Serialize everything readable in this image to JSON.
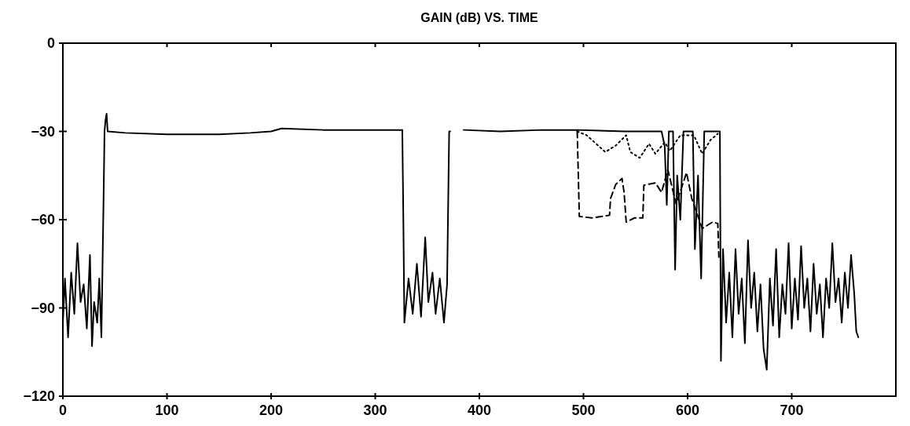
{
  "chart_data": {
    "type": "line",
    "title": "GAIN (dB) VS. TIME",
    "xlim": [
      0,
      800
    ],
    "xticks": [
      0,
      100,
      200,
      300,
      400,
      500,
      600,
      700
    ],
    "ylim": [
      -120,
      0
    ],
    "yticks": [
      {
        "value": -120,
        "label": "−120"
      },
      {
        "value": -90,
        "label": "−90"
      },
      {
        "value": -60,
        "label": "−60"
      },
      {
        "value": -30,
        "label": "−30"
      },
      0
    ],
    "series": [
      {
        "color": "#000000",
        "line_style": "solid",
        "x": [
          0,
          2,
          5,
          8,
          11,
          14,
          17,
          20,
          23,
          26,
          28,
          30,
          33,
          35,
          37,
          39,
          40,
          41,
          42,
          43,
          60,
          100,
          150,
          180,
          200,
          210,
          250,
          300,
          326,
          327,
          328,
          332,
          336,
          340,
          344,
          348,
          351,
          355,
          358,
          362,
          366,
          369,
          371,
          372,
          378,
          385,
          420,
          460,
          494,
          540,
          575,
          578,
          580,
          582,
          586,
          588,
          590,
          593,
          596,
          605,
          607,
          610,
          613,
          616,
          628,
          631,
          632,
          634,
          637,
          640,
          643,
          646,
          649,
          652,
          655,
          658,
          661,
          664,
          667,
          670,
          673,
          676,
          679,
          682,
          685,
          688,
          691,
          694,
          697,
          700,
          703,
          706,
          709,
          712,
          715,
          718,
          721,
          724,
          727,
          730,
          733,
          736,
          739,
          742,
          745,
          748,
          751,
          754,
          757,
          760,
          762,
          764
        ],
        "values": [
          -95,
          -80,
          -100,
          -78,
          -92,
          -68,
          -88,
          -82,
          -97,
          -72,
          -103,
          -88,
          -95,
          -80,
          -100,
          -55,
          -30,
          -26,
          -24,
          -30,
          -30.5,
          -31,
          -31,
          -30.5,
          -30,
          -29,
          -29.5,
          -29.5,
          -29.5,
          -60,
          -95,
          -80,
          -92,
          -75,
          -93,
          -66,
          -88,
          -78,
          -92,
          -80,
          -95,
          -82,
          -30,
          -30,
          null,
          -29.5,
          -30,
          -29.5,
          -29.5,
          -30,
          -30,
          -35,
          -55,
          -30,
          -30,
          -77,
          -45,
          -60,
          -30,
          -30,
          -70,
          -45,
          -80,
          -30,
          -30,
          -30,
          -108,
          -70,
          -95,
          -78,
          -100,
          -70,
          -92,
          -80,
          -102,
          -67,
          -90,
          -78,
          -98,
          -82,
          -104,
          -111,
          -80,
          -96,
          -70,
          -100,
          -82,
          -92,
          -68,
          -97,
          -80,
          -94,
          -69,
          -90,
          -80,
          -98,
          -75,
          -92,
          -82,
          -100,
          -80,
          -90,
          -68,
          -88,
          -80,
          -95,
          -78,
          -90,
          -72,
          -85,
          -98,
          -100
        ]
      },
      {
        "color": "#000000",
        "line_style": "dashed",
        "x": [
          494,
          496,
          508,
          525,
          526,
          531,
          537,
          539,
          541,
          549,
          557,
          558,
          569,
          575,
          581,
          589,
          599,
          604,
          614,
          624,
          629,
          630
        ],
        "values": [
          -30,
          -58.9,
          -59.4,
          -58.5,
          -52.8,
          -48,
          -46,
          -50.7,
          -60.8,
          -59.4,
          -59.4,
          -48.3,
          -47.5,
          -50.7,
          -43,
          -54.7,
          -44,
          -52.8,
          -63,
          -60.8,
          -61.3,
          -72.7
        ]
      },
      {
        "color": "#000000",
        "line_style": "dotted",
        "x": [
          494,
          503,
          521,
          531,
          541,
          545,
          554,
          563,
          569,
          578,
          583,
          593,
          606,
          614,
          622,
          629
        ],
        "values": [
          -30,
          -31.3,
          -37,
          -34.8,
          -31.3,
          -37,
          -39,
          -34.2,
          -37.6,
          -33.7,
          -36.6,
          -31.3,
          -31.3,
          -37.6,
          -32.9,
          -30.8
        ]
      }
    ]
  }
}
